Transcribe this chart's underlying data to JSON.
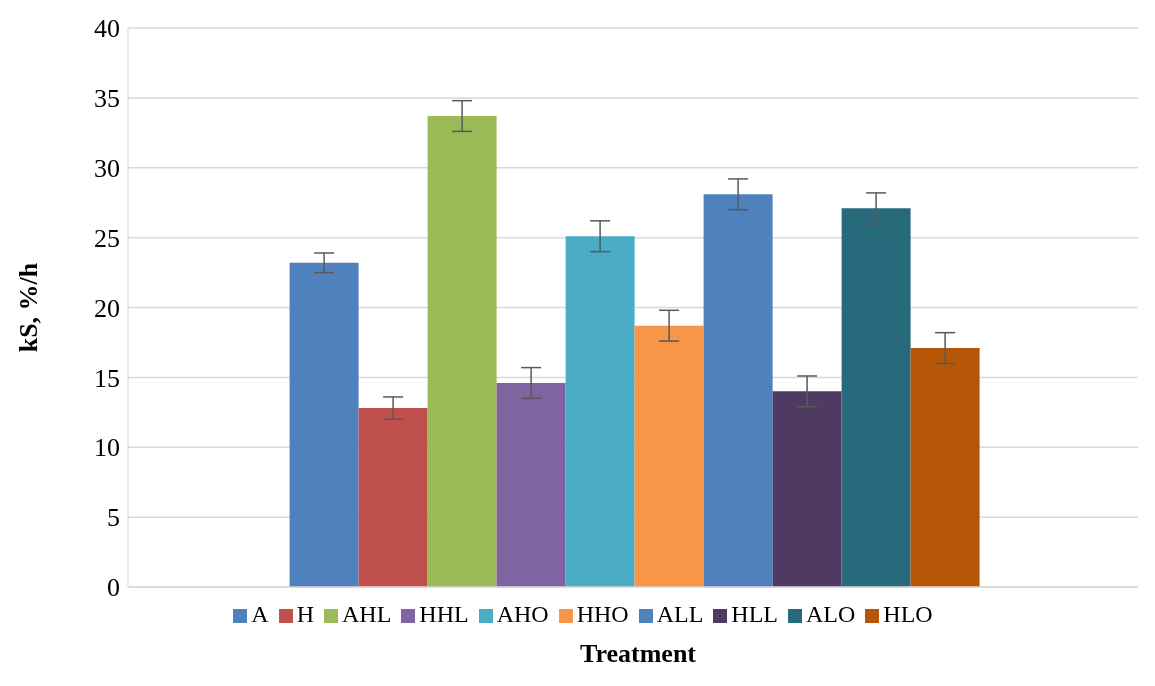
{
  "chart_data": {
    "type": "bar",
    "xlabel": "Treatment",
    "ylabel": "kS, %/h",
    "categories": [
      null
    ],
    "ylim": [
      0,
      40
    ],
    "yticks": [
      0,
      5,
      10,
      15,
      20,
      25,
      30,
      35,
      40
    ],
    "grid": "y",
    "legend": "bottom",
    "series": [
      {
        "name": "A",
        "color": "#4f81bd",
        "values": [
          23.2
        ],
        "errors": [
          0.7
        ]
      },
      {
        "name": "H",
        "color": "#c0504d",
        "values": [
          12.8
        ],
        "errors": [
          0.8
        ]
      },
      {
        "name": "AHL",
        "color": "#9bbb59",
        "values": [
          33.7
        ],
        "errors": [
          1.1
        ]
      },
      {
        "name": "HHL",
        "color": "#8064a2",
        "values": [
          14.6
        ],
        "errors": [
          1.1
        ]
      },
      {
        "name": "AHO",
        "color": "#4bacc6",
        "values": [
          25.1
        ],
        "errors": [
          1.1
        ]
      },
      {
        "name": "HHO",
        "color": "#f79646",
        "values": [
          18.7
        ],
        "errors": [
          1.1
        ]
      },
      {
        "name": "ALL",
        "color": "#4f81bd",
        "values": [
          28.1
        ],
        "errors": [
          1.1
        ]
      },
      {
        "name": "HLL",
        "color": "#4e3a62",
        "values": [
          14.0
        ],
        "errors": [
          1.1
        ]
      },
      {
        "name": "ALO",
        "color": "#276a7c",
        "values": [
          27.1
        ],
        "errors": [
          1.1
        ]
      },
      {
        "name": "HLO",
        "color": "#b65708",
        "values": [
          17.1
        ],
        "errors": [
          1.1
        ]
      }
    ]
  }
}
